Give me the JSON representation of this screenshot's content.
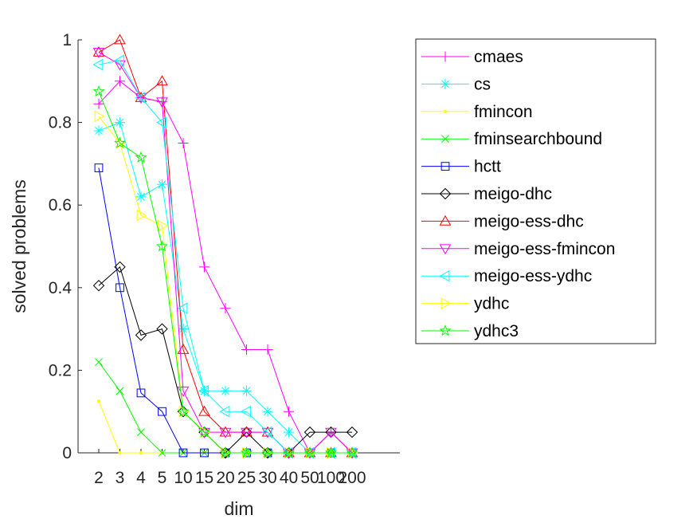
{
  "chart_data": {
    "type": "line",
    "xlabel": "dim",
    "ylabel": "solved problems",
    "categories": [
      "2",
      "3",
      "4",
      "5",
      "10",
      "15",
      "20",
      "25",
      "30",
      "40",
      "50",
      "100",
      "200"
    ],
    "ylim": [
      0,
      1
    ],
    "yticks": [
      "0",
      "0.2",
      "0.4",
      "0.6",
      "0.8",
      "1"
    ],
    "grid": false,
    "legend_position": "outside-right",
    "series": [
      {
        "name": "cmaes",
        "color": "#ff00ff",
        "marker": "plus",
        "values": [
          0.845,
          0.9,
          0.86,
          0.85,
          0.75,
          0.45,
          0.35,
          0.25,
          0.25,
          0.1,
          0.0,
          0.05,
          0.0
        ]
      },
      {
        "name": "cs",
        "color": "#00ffff",
        "marker": "asterisk",
        "values": [
          0.78,
          0.8,
          0.62,
          0.65,
          0.3,
          0.15,
          0.15,
          0.15,
          0.1,
          0.05,
          0.0,
          0.0,
          0.0
        ]
      },
      {
        "name": "fmincon",
        "color": "#ffff00",
        "marker": "dot",
        "values": [
          0.125,
          0.0,
          0.0,
          0.0,
          0.0,
          0.0,
          0.0,
          0.0,
          0.0,
          0.0,
          0.0,
          0.0,
          0.0
        ]
      },
      {
        "name": "fminsearchbound",
        "color": "#00ff00",
        "marker": "cross",
        "values": [
          0.22,
          0.15,
          0.05,
          0.0,
          0.0,
          0.0,
          0.0,
          0.0,
          0.0,
          0.0,
          0.0,
          0.0,
          0.0
        ]
      },
      {
        "name": "hctt",
        "color": "#0000ff",
        "marker": "square",
        "values": [
          0.69,
          0.4,
          0.145,
          0.1,
          0.0,
          0.0,
          0.0,
          0.0,
          0.0,
          0.0,
          0.0,
          0.0,
          0.0
        ]
      },
      {
        "name": "meigo-dhc",
        "color": "#000000",
        "marker": "diamond",
        "values": [
          0.405,
          0.45,
          0.285,
          0.3,
          0.1,
          0.05,
          0.0,
          0.05,
          0.0,
          0.0,
          0.05,
          0.05,
          0.05
        ]
      },
      {
        "name": "meigo-ess-dhc",
        "color": "#ff0000",
        "marker": "triangle-up",
        "values": [
          0.97,
          1.0,
          0.86,
          0.9,
          0.25,
          0.1,
          0.05,
          0.05,
          0.05,
          0.0,
          0.0,
          0.0,
          0.0
        ]
      },
      {
        "name": "meigo-ess-fmincon",
        "color": "#ff00ff",
        "marker": "triangle-down",
        "values": [
          0.97,
          0.94,
          0.86,
          0.85,
          0.15,
          0.05,
          0.05,
          0.05,
          0.05,
          0.0,
          0.0,
          0.05,
          0.0
        ]
      },
      {
        "name": "meigo-ess-ydhc",
        "color": "#00ffff",
        "marker": "triangle-left",
        "values": [
          0.94,
          0.95,
          0.86,
          0.8,
          0.35,
          0.15,
          0.1,
          0.1,
          0.05,
          0.0,
          0.0,
          0.0,
          0.0
        ]
      },
      {
        "name": "ydhc",
        "color": "#ffff00",
        "marker": "triangle-right",
        "values": [
          0.815,
          0.75,
          0.575,
          0.55,
          0.1,
          0.05,
          0.0,
          0.0,
          0.0,
          0.0,
          0.0,
          0.0,
          0.0
        ]
      },
      {
        "name": "ydhc3",
        "color": "#00ff00",
        "marker": "pentagram",
        "values": [
          0.875,
          0.75,
          0.715,
          0.5,
          0.1,
          0.05,
          0.0,
          0.0,
          0.0,
          0.0,
          0.0,
          0.0,
          0.0
        ]
      }
    ]
  }
}
